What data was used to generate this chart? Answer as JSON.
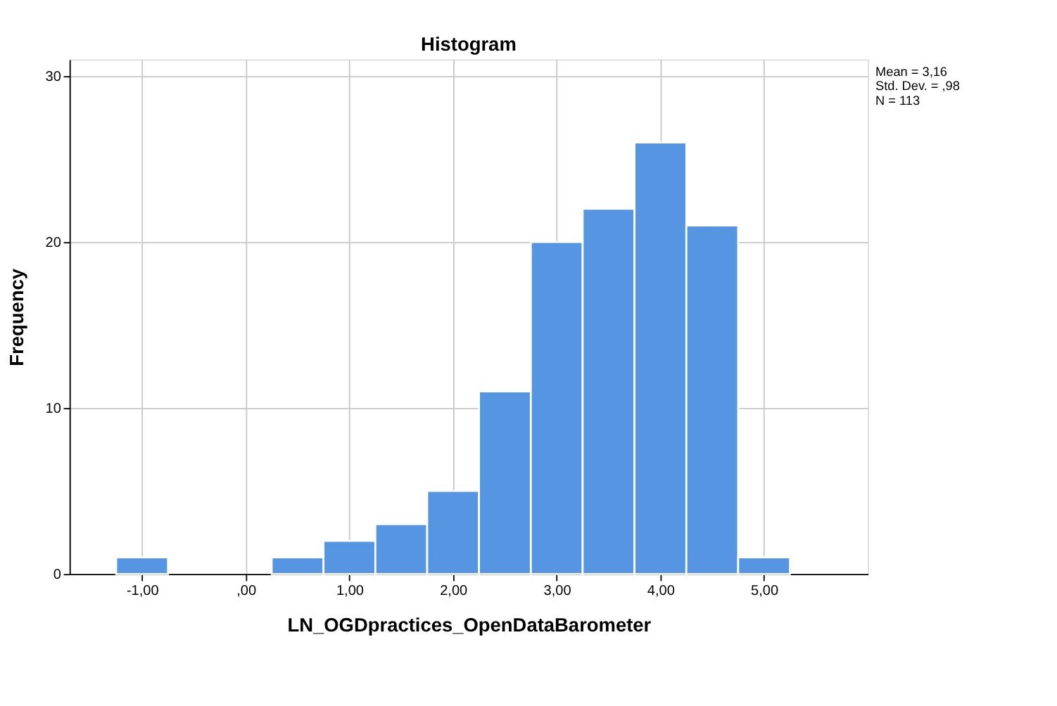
{
  "chart_data": {
    "type": "histogram",
    "title": "Histogram",
    "xlabel": "LN_OGDpractices_OpenDataBarometer",
    "ylabel": "Frequency",
    "bins": [
      -1.25,
      -0.75,
      -0.25,
      0.25,
      0.75,
      1.25,
      1.75,
      2.25,
      2.75,
      3.25,
      3.75,
      4.25,
      4.75,
      5.25
    ],
    "values": [
      1,
      0,
      0,
      1,
      2,
      3,
      5,
      11,
      20,
      22,
      26,
      21,
      1
    ],
    "color": "#5595e2",
    "xlim": [
      -1.7,
      6.0
    ],
    "ylim": [
      0,
      31
    ],
    "xticks": [
      {
        "value": -1,
        "label": "-1,00"
      },
      {
        "value": 0,
        "label": ",00"
      },
      {
        "value": 1,
        "label": "1,00"
      },
      {
        "value": 2,
        "label": "2,00"
      },
      {
        "value": 3,
        "label": "3,00"
      },
      {
        "value": 4,
        "label": "4,00"
      },
      {
        "value": 5,
        "label": "5,00"
      }
    ],
    "yticks": [
      0,
      10,
      20,
      30
    ],
    "grid": true,
    "annotations": [
      "Mean = 3,16",
      "Std. Dev. = ,98",
      "N = 113"
    ]
  }
}
